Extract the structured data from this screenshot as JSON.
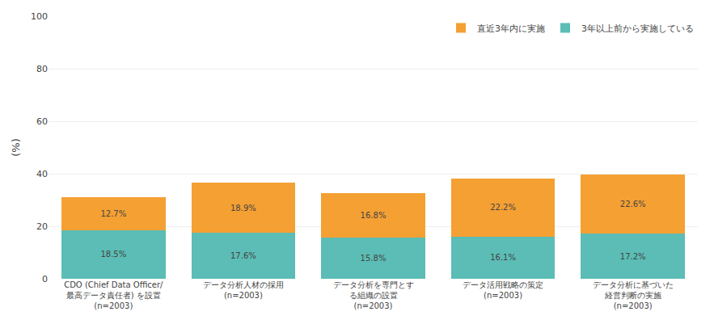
{
  "chart_data": {
    "type": "bar",
    "stacked": true,
    "categories": [
      "CDO (Chief Data Officer/\n最高データ責任者) を設置\n(n=2003)",
      "データ分析人材の採用\n(n=2003)",
      "データ分析を専門とす\nる組織の設置\n(n=2003)",
      "データ活用戦略の策定\n(n=2003)",
      "データ分析に基づいた\n経営判断の実施\n(n=2003)"
    ],
    "series": [
      {
        "name": "3年以上前から実施している",
        "color": "#5BBDB5",
        "values": [
          18.5,
          17.6,
          15.8,
          16.1,
          17.2
        ],
        "value_labels": [
          "18.5%",
          "17.6%",
          "15.8%",
          "16.1%",
          "17.2%"
        ]
      },
      {
        "name": "直近3年内に実施",
        "color": "#F5A033",
        "values": [
          12.7,
          18.9,
          16.8,
          22.2,
          22.6
        ],
        "value_labels": [
          "12.7%",
          "18.9%",
          "16.8%",
          "22.2%",
          "22.6%"
        ]
      }
    ],
    "ylabel": "(%)",
    "ylim": [
      0,
      100
    ],
    "yticks": [
      0,
      20,
      40,
      60,
      80,
      100
    ],
    "grid": true,
    "data_labels": true,
    "legend": "top right"
  }
}
